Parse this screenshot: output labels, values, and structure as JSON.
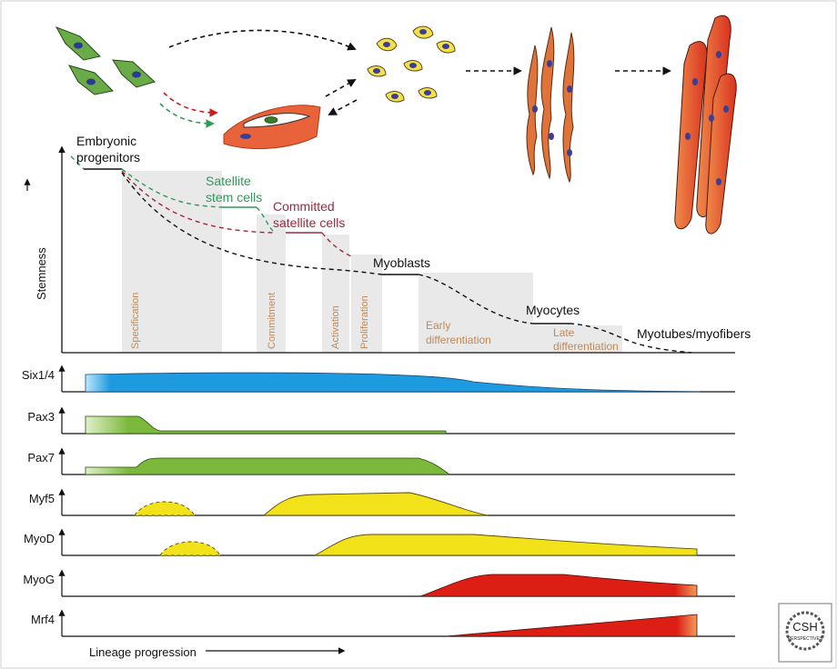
{
  "stemness_axis_label": "Stemness",
  "stages": {
    "embryonic_line1": "Embryonic",
    "embryonic_line2": "progenitors",
    "satellite_line1": "Satellite",
    "satellite_line2": "stem cells",
    "committed_line1": "Committed",
    "committed_line2": "satellite cells",
    "myoblasts": "Myoblasts",
    "myocytes": "Myocytes",
    "myotubes": "Myotubes/myofibers"
  },
  "phases": {
    "specification": "Specification",
    "commitment": "Commitment",
    "activation": "Activation",
    "proliferation": "Proliferation",
    "early_line1": "Early",
    "early_line2": "differentiation",
    "late_line1": "Late",
    "late_line2": "differentiation"
  },
  "genes": [
    "Six1/4",
    "Pax3",
    "Pax7",
    "Myf5",
    "MyoD",
    "MyoG",
    "Mrf4"
  ],
  "x_axis_label": "Lineage progression",
  "logo": {
    "line1": "CSH",
    "line2": "PERSPECTIVES"
  },
  "colors": {
    "six": "#1e9be0",
    "pax": "#7cb83c",
    "myf": "#f2e21a",
    "myog": "#dc1e14",
    "satellite": "#2e9a5a",
    "committed": "#a0283c",
    "phase_text": "#c08a58",
    "phase_band": "#e9e9e9"
  }
}
